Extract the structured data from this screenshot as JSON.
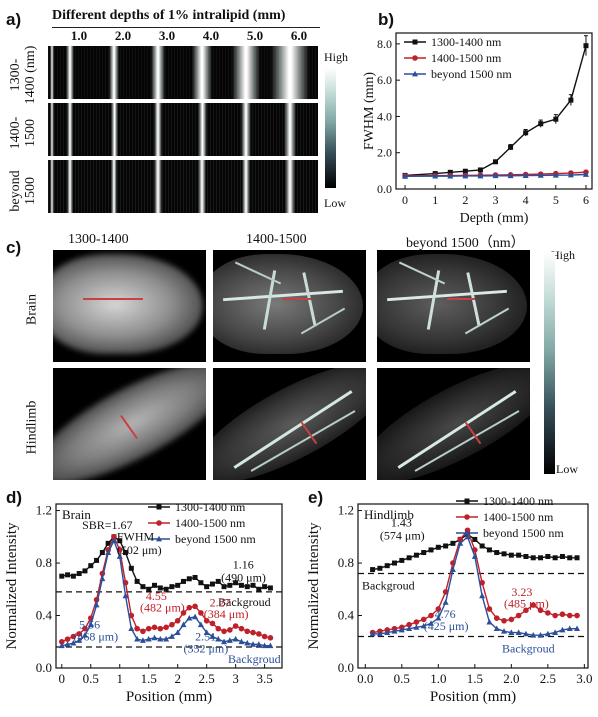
{
  "panel_a": {
    "letter": "a)",
    "title": "Different depths of 1% intralipid (mm)",
    "depths": [
      "1.0",
      "2.0",
      "3.0",
      "4.0",
      "5.0",
      "6.0"
    ],
    "rows": [
      {
        "label_line1": "1300-",
        "label_line2": "1400 (nm)"
      },
      {
        "label_line1": "1400-",
        "label_line2": "1500"
      },
      {
        "label_line1": "beyond",
        "label_line2": "1500"
      }
    ],
    "colorbar": {
      "high": "High",
      "low": "Low"
    }
  },
  "panel_c": {
    "letter": "c)",
    "columns": [
      "1300-1400",
      "1400-1500",
      "beyond 1500（nm）"
    ],
    "rows": [
      "Brain",
      "Hindlimb"
    ],
    "colorbar": {
      "high": "High",
      "low": "Low"
    }
  },
  "chart_data": [
    {
      "id": "b",
      "letter": "b)",
      "type": "line",
      "xlabel": "Depth (mm)",
      "ylabel": "FWHM (mm)",
      "xlim": [
        -0.3,
        6.2
      ],
      "ylim": [
        0,
        8.6
      ],
      "xticks": [
        0,
        1,
        2,
        3,
        4,
        5,
        6
      ],
      "yticks": [
        0.0,
        2.0,
        4.0,
        6.0,
        8.0
      ],
      "ytick_labels": [
        "0.0",
        "2.0",
        "4.0",
        "6.0",
        "8.0"
      ],
      "legend_position": "top-left",
      "series": [
        {
          "name": "1300-1400 nm",
          "color": "#111111",
          "marker": "square",
          "x": [
            0,
            1,
            1.5,
            2,
            2.5,
            3,
            3.5,
            4,
            4.5,
            5,
            5.5,
            6
          ],
          "y": [
            0.75,
            0.85,
            0.92,
            0.98,
            1.05,
            1.5,
            2.3,
            3.1,
            3.6,
            3.85,
            4.9,
            7.9
          ],
          "err": [
            0.05,
            0.06,
            0.06,
            0.07,
            0.08,
            0.1,
            0.15,
            0.18,
            0.2,
            0.25,
            0.3,
            0.55
          ]
        },
        {
          "name": "1400-1500 nm",
          "color": "#c0202a",
          "marker": "circle",
          "x": [
            0,
            1,
            1.5,
            2,
            2.5,
            3,
            3.5,
            4,
            4.5,
            5,
            5.5,
            6
          ],
          "y": [
            0.72,
            0.74,
            0.74,
            0.75,
            0.76,
            0.77,
            0.78,
            0.8,
            0.82,
            0.85,
            0.88,
            0.93
          ],
          "err": [
            0.03,
            0.03,
            0.03,
            0.03,
            0.03,
            0.03,
            0.04,
            0.04,
            0.04,
            0.05,
            0.05,
            0.06
          ]
        },
        {
          "name": "beyond 1500 nm",
          "color": "#2b4f9a",
          "marker": "triangle",
          "x": [
            0,
            1,
            1.5,
            2,
            2.5,
            3,
            3.5,
            4,
            4.5,
            5,
            5.5,
            6
          ],
          "y": [
            0.7,
            0.71,
            0.71,
            0.72,
            0.72,
            0.73,
            0.73,
            0.74,
            0.75,
            0.76,
            0.77,
            0.8
          ],
          "err": [
            0.03,
            0.03,
            0.03,
            0.03,
            0.03,
            0.03,
            0.03,
            0.03,
            0.03,
            0.03,
            0.04,
            0.04
          ]
        }
      ]
    },
    {
      "id": "d",
      "letter": "d)",
      "type": "line",
      "title": "Brain",
      "xlabel": "Position (mm)",
      "ylabel": "Normalized Intensity",
      "xlim": [
        -0.1,
        3.8
      ],
      "ylim": [
        0,
        1.25
      ],
      "xticks": [
        0,
        0.5,
        1,
        1.5,
        2,
        2.5,
        3,
        3.5
      ],
      "xtick_labels": [
        "0",
        "0.5",
        "1",
        "1.5",
        "2",
        "2.5",
        "3",
        "3.5"
      ],
      "yticks": [
        0.0,
        0.4,
        0.8,
        1.2
      ],
      "ytick_labels": [
        "0.0",
        "0.4",
        "0.8",
        "1.2"
      ],
      "legend_position": "top-right",
      "series": [
        {
          "name": "1300-1400 nm",
          "color": "#111111",
          "marker": "square",
          "x": [
            0.0,
            0.1,
            0.2,
            0.3,
            0.4,
            0.5,
            0.6,
            0.7,
            0.8,
            0.9,
            1.0,
            1.1,
            1.2,
            1.3,
            1.4,
            1.5,
            1.6,
            1.7,
            1.8,
            1.9,
            2.0,
            2.1,
            2.2,
            2.3,
            2.4,
            2.5,
            2.6,
            2.7,
            2.8,
            2.9,
            3.0,
            3.1,
            3.2,
            3.3,
            3.4,
            3.5,
            3.6
          ],
          "y": [
            0.7,
            0.71,
            0.7,
            0.72,
            0.74,
            0.78,
            0.82,
            0.88,
            0.95,
            1.0,
            0.97,
            0.88,
            0.76,
            0.66,
            0.62,
            0.6,
            0.63,
            0.61,
            0.6,
            0.62,
            0.63,
            0.66,
            0.68,
            0.69,
            0.65,
            0.62,
            0.64,
            0.66,
            0.62,
            0.63,
            0.65,
            0.63,
            0.62,
            0.63,
            0.6,
            0.62,
            0.61
          ]
        },
        {
          "name": "1400-1500 nm",
          "color": "#c0202a",
          "marker": "circle",
          "x": [
            0.0,
            0.1,
            0.2,
            0.3,
            0.4,
            0.5,
            0.6,
            0.7,
            0.8,
            0.9,
            1.0,
            1.1,
            1.2,
            1.3,
            1.4,
            1.5,
            1.6,
            1.7,
            1.8,
            1.9,
            2.0,
            2.1,
            2.2,
            2.3,
            2.4,
            2.5,
            2.6,
            2.7,
            2.8,
            2.9,
            3.0,
            3.1,
            3.2,
            3.3,
            3.4,
            3.5,
            3.6
          ],
          "y": [
            0.2,
            0.22,
            0.24,
            0.26,
            0.3,
            0.38,
            0.52,
            0.72,
            0.9,
            1.0,
            0.9,
            0.65,
            0.4,
            0.3,
            0.28,
            0.3,
            0.31,
            0.3,
            0.31,
            0.33,
            0.36,
            0.42,
            0.46,
            0.47,
            0.42,
            0.36,
            0.34,
            0.3,
            0.28,
            0.29,
            0.32,
            0.3,
            0.28,
            0.27,
            0.26,
            0.24,
            0.23
          ]
        },
        {
          "name": "beyond 1500 nm",
          "color": "#2b4f9a",
          "marker": "triangle",
          "x": [
            0.0,
            0.1,
            0.2,
            0.3,
            0.4,
            0.5,
            0.6,
            0.7,
            0.8,
            0.9,
            1.0,
            1.1,
            1.2,
            1.3,
            1.4,
            1.5,
            1.6,
            1.7,
            1.8,
            1.9,
            2.0,
            2.1,
            2.2,
            2.3,
            2.4,
            2.5,
            2.6,
            2.7,
            2.8,
            2.9,
            3.0,
            3.1,
            3.2,
            3.3,
            3.4,
            3.5,
            3.6
          ],
          "y": [
            0.17,
            0.18,
            0.19,
            0.21,
            0.25,
            0.33,
            0.48,
            0.68,
            0.88,
            0.97,
            0.85,
            0.55,
            0.3,
            0.22,
            0.21,
            0.22,
            0.23,
            0.22,
            0.22,
            0.24,
            0.27,
            0.33,
            0.38,
            0.39,
            0.33,
            0.27,
            0.24,
            0.22,
            0.2,
            0.21,
            0.22,
            0.2,
            0.19,
            0.18,
            0.18,
            0.17,
            0.17
          ]
        }
      ],
      "background_lines": [
        {
          "y": 0.58,
          "label": "Backgroud"
        },
        {
          "y": 0.16,
          "label": "Backgroud"
        }
      ],
      "annotations": [
        {
          "text": "SBR=1.67",
          "color": "#111111",
          "x": 0.35,
          "y": 1.06
        },
        {
          "text": "FWHM",
          "color": "#111111",
          "x": 0.95,
          "y": 0.97
        },
        {
          "text": "(502 μm)",
          "color": "#111111",
          "x": 0.95,
          "y": 0.87
        },
        {
          "text": "1.16",
          "color": "#111111",
          "x": 2.95,
          "y": 0.76
        },
        {
          "text": "(490 μm)",
          "color": "#111111",
          "x": 2.75,
          "y": 0.66
        },
        {
          "text": "4.55",
          "color": "#c0202a",
          "x": 1.45,
          "y": 0.52
        },
        {
          "text": "(482 μm)",
          "color": "#c0202a",
          "x": 1.35,
          "y": 0.43
        },
        {
          "text": "2.27",
          "color": "#c0202a",
          "x": 2.55,
          "y": 0.47
        },
        {
          "text": "(384 μm)",
          "color": "#c0202a",
          "x": 2.45,
          "y": 0.38
        },
        {
          "text": "5.56",
          "color": "#2b4f9a",
          "x": 0.3,
          "y": 0.3
        },
        {
          "text": "(468 μm)",
          "color": "#2b4f9a",
          "x": 0.2,
          "y": 0.21
        },
        {
          "text": "2.51",
          "color": "#2b4f9a",
          "x": 2.3,
          "y": 0.21
        },
        {
          "text": "(352 μm)",
          "color": "#2b4f9a",
          "x": 2.1,
          "y": 0.12
        }
      ]
    },
    {
      "id": "e",
      "letter": "e)",
      "type": "line",
      "title": "Hindlimb",
      "xlabel": "Position (mm)",
      "ylabel": "Normalized Intensity",
      "xlim": [
        -0.1,
        3.05
      ],
      "ylim": [
        0,
        1.25
      ],
      "xticks": [
        0,
        0.5,
        1,
        1.5,
        2,
        2.5,
        3
      ],
      "xtick_labels": [
        "0.0",
        "0.5",
        "1.0",
        "1.5",
        "2.0",
        "2.5",
        "3.0"
      ],
      "yticks": [
        0.0,
        0.4,
        0.8,
        1.2
      ],
      "ytick_labels": [
        "0.0",
        "0.4",
        "0.8",
        "1.2"
      ],
      "legend_position": "top-right",
      "series": [
        {
          "name": "1300-1400 nm",
          "color": "#111111",
          "marker": "square",
          "x": [
            0.1,
            0.2,
            0.3,
            0.4,
            0.5,
            0.6,
            0.7,
            0.8,
            0.9,
            1.0,
            1.1,
            1.2,
            1.3,
            1.4,
            1.5,
            1.6,
            1.7,
            1.8,
            1.9,
            2.0,
            2.1,
            2.2,
            2.3,
            2.4,
            2.5,
            2.6,
            2.7,
            2.8,
            2.9
          ],
          "y": [
            0.75,
            0.76,
            0.78,
            0.8,
            0.82,
            0.84,
            0.86,
            0.88,
            0.9,
            0.92,
            0.93,
            0.95,
            0.98,
            1.02,
            0.98,
            0.93,
            0.9,
            0.88,
            0.87,
            0.86,
            0.86,
            0.85,
            0.84,
            0.84,
            0.85,
            0.84,
            0.85,
            0.84,
            0.84
          ]
        },
        {
          "name": "1400-1500 nm",
          "color": "#c0202a",
          "marker": "circle",
          "x": [
            0.1,
            0.2,
            0.3,
            0.4,
            0.5,
            0.6,
            0.7,
            0.8,
            0.9,
            1.0,
            1.1,
            1.2,
            1.3,
            1.4,
            1.5,
            1.6,
            1.7,
            1.8,
            1.9,
            2.0,
            2.1,
            2.2,
            2.3,
            2.4,
            2.5,
            2.6,
            2.7,
            2.8,
            2.9
          ],
          "y": [
            0.27,
            0.28,
            0.29,
            0.3,
            0.31,
            0.33,
            0.35,
            0.37,
            0.4,
            0.45,
            0.58,
            0.8,
            0.98,
            1.05,
            0.9,
            0.65,
            0.45,
            0.38,
            0.36,
            0.37,
            0.4,
            0.44,
            0.48,
            0.44,
            0.42,
            0.4,
            0.41,
            0.4,
            0.4
          ]
        },
        {
          "name": "beyond 1500 nm",
          "color": "#2b4f9a",
          "marker": "triangle",
          "x": [
            0.1,
            0.2,
            0.3,
            0.4,
            0.5,
            0.6,
            0.7,
            0.8,
            0.9,
            1.0,
            1.1,
            1.2,
            1.3,
            1.4,
            1.5,
            1.6,
            1.7,
            1.8,
            1.9,
            2.0,
            2.1,
            2.2,
            2.3,
            2.4,
            2.5,
            2.6,
            2.7,
            2.8,
            2.9
          ],
          "y": [
            0.26,
            0.26,
            0.27,
            0.28,
            0.29,
            0.3,
            0.31,
            0.32,
            0.34,
            0.38,
            0.5,
            0.75,
            0.95,
            1.0,
            0.85,
            0.55,
            0.35,
            0.3,
            0.28,
            0.27,
            0.27,
            0.26,
            0.25,
            0.25,
            0.26,
            0.27,
            0.29,
            0.3,
            0.3
          ]
        }
      ],
      "background_lines": [
        {
          "y": 0.72,
          "label": "Backgroud"
        },
        {
          "y": 0.24,
          "label": "Backgroud"
        }
      ],
      "annotations": [
        {
          "text": "1.43",
          "color": "#111111",
          "x": 0.35,
          "y": 1.08
        },
        {
          "text": "(574 μm)",
          "color": "#111111",
          "x": 0.2,
          "y": 0.98
        },
        {
          "text": "3.23",
          "color": "#c0202a",
          "x": 2.0,
          "y": 0.55
        },
        {
          "text": "(485 μm)",
          "color": "#c0202a",
          "x": 1.9,
          "y": 0.46
        },
        {
          "text": "4.76",
          "color": "#2b4f9a",
          "x": 0.95,
          "y": 0.38
        },
        {
          "text": "(425 μm)",
          "color": "#2b4f9a",
          "x": 0.8,
          "y": 0.29
        }
      ]
    }
  ]
}
